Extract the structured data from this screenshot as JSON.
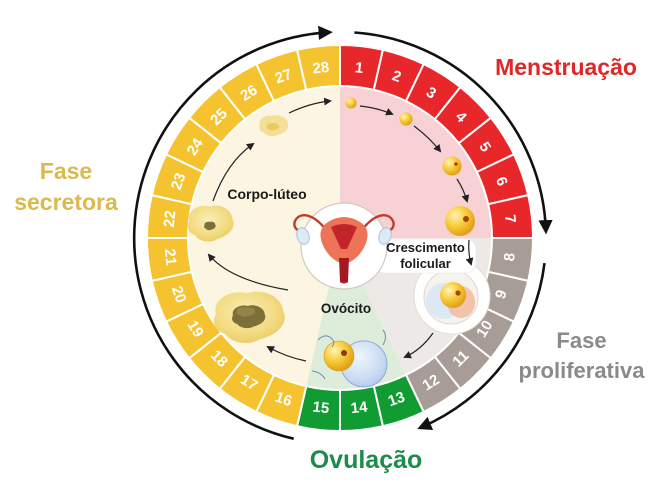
{
  "diagram_subject": "ciclo menstrual de 28 dias",
  "cycle": {
    "total_days": 28,
    "day_numbers": [
      1,
      2,
      3,
      4,
      5,
      6,
      7,
      8,
      9,
      10,
      11,
      12,
      13,
      14,
      15,
      16,
      17,
      18,
      19,
      20,
      21,
      22,
      23,
      24,
      25,
      26,
      27,
      28
    ],
    "direction": "clockwise"
  },
  "phases": [
    {
      "label": "Menstruação",
      "day_start": 1,
      "day_end": 7,
      "ring_color": "#E8272B",
      "inner_color": "#F8D1D4",
      "label_color": "#DE2726"
    },
    {
      "label": "Fase proliferativa",
      "day_start": 8,
      "day_end": 12,
      "ring_color": "#A89C96",
      "inner_color": "#ECE9E6",
      "label_color": "#8A8A8A"
    },
    {
      "label": "Ovulação",
      "day_start": 13,
      "day_end": 15,
      "ring_color": "#119B33",
      "inner_color": "#DEEDDA",
      "label_color": "#1C8C4C"
    },
    {
      "label": "Fase secretora",
      "day_start": 16,
      "day_end": 28,
      "ring_color": "#F5C32F",
      "inner_color": "#FBF5E1",
      "label_color": "#DCB94E"
    }
  ],
  "inner_labels": {
    "corpo_luteo": "Corpo-lúteo",
    "crescimento_folicular": "Crescimento folicular",
    "ovocito": "Ovócito"
  },
  "day_number_text_color": "#FFFFFF",
  "arrow_color": "#111111"
}
